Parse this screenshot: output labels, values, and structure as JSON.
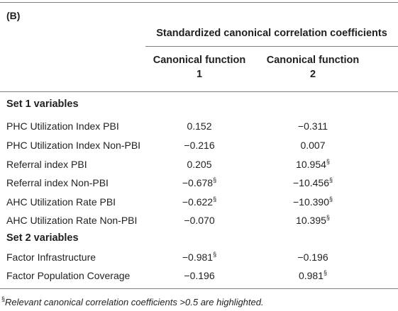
{
  "panel_label": "(B)",
  "header": {
    "spanner": "Standardized canonical correlation coefficients",
    "col1_line1": "Canonical function",
    "col1_line2": "1",
    "col2_line1": "Canonical function",
    "col2_line2": "2"
  },
  "sections": [
    {
      "title": "Set 1 variables",
      "rows": [
        {
          "label": "PHC Utilization Index PBI",
          "v1": "0.152",
          "v1_mark": "",
          "v2": "−0.311",
          "v2_mark": ""
        },
        {
          "label": "PHC Utilization Index Non-PBI",
          "v1": "−0.216",
          "v1_mark": "",
          "v2": "0.007",
          "v2_mark": ""
        },
        {
          "label": "Referral index PBI",
          "v1": "0.205",
          "v1_mark": "",
          "v2": "10.954",
          "v2_mark": "§"
        },
        {
          "label": "Referral index Non-PBI",
          "v1": "−0.678",
          "v1_mark": "§",
          "v2": "−10.456",
          "v2_mark": "§"
        },
        {
          "label": "AHC Utilization Rate PBI",
          "v1": "−0.622",
          "v1_mark": "§",
          "v2": "−10.390",
          "v2_mark": "§"
        },
        {
          "label": "AHC Utilization Rate Non-PBI",
          "v1": "−0.070",
          "v1_mark": "",
          "v2": "10.395",
          "v2_mark": "§"
        }
      ]
    },
    {
      "title": "Set 2 variables",
      "rows": [
        {
          "label": "Factor Infrastructure",
          "v1": "−0.981",
          "v1_mark": "§",
          "v2": "−0.196",
          "v2_mark": ""
        },
        {
          "label": "Factor Population Coverage",
          "v1": "−0.196",
          "v1_mark": "",
          "v2": "0.981",
          "v2_mark": "§"
        }
      ]
    }
  ],
  "footnote": {
    "mark": "§",
    "text": "Relevant canonical correlation coefficients >0.5 are highlighted."
  }
}
